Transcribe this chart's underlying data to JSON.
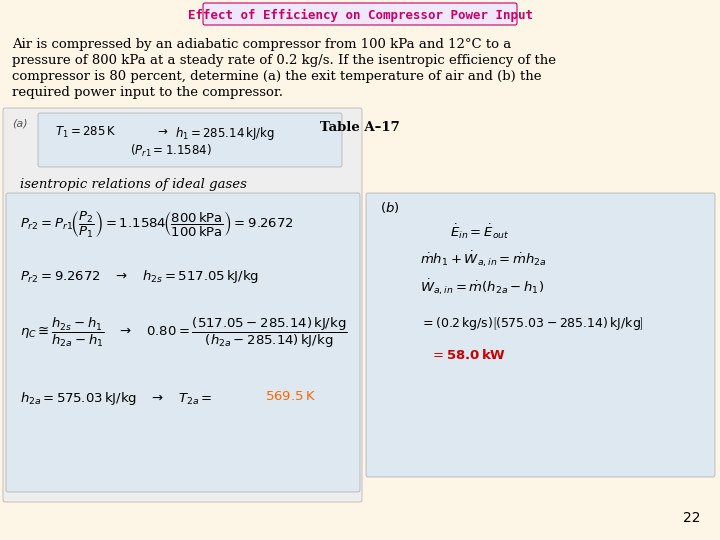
{
  "bg_color": "#fdf5e6",
  "title_text": "Effect of Efficiency on Compressor Power Input",
  "title_color": "#cc0066",
  "title_box_color": "#e8d8f0",
  "title_fontsize": 9,
  "body_text": "Air is compressed by an adiabatic compressor from 100 kPa and 12°C to a\npressure of 800 kPa at a steady rate of 0.2 kg/s. If the isentropic efficiency of the\ncompressor is 80 percent, determine (a) the exit temperature of air and (b) the\nrequired power input to the compressor.",
  "body_fontsize": 9.5,
  "page_number": "22",
  "left_box_color": "#e8e8e8",
  "right_box_color": "#e8e8e8"
}
